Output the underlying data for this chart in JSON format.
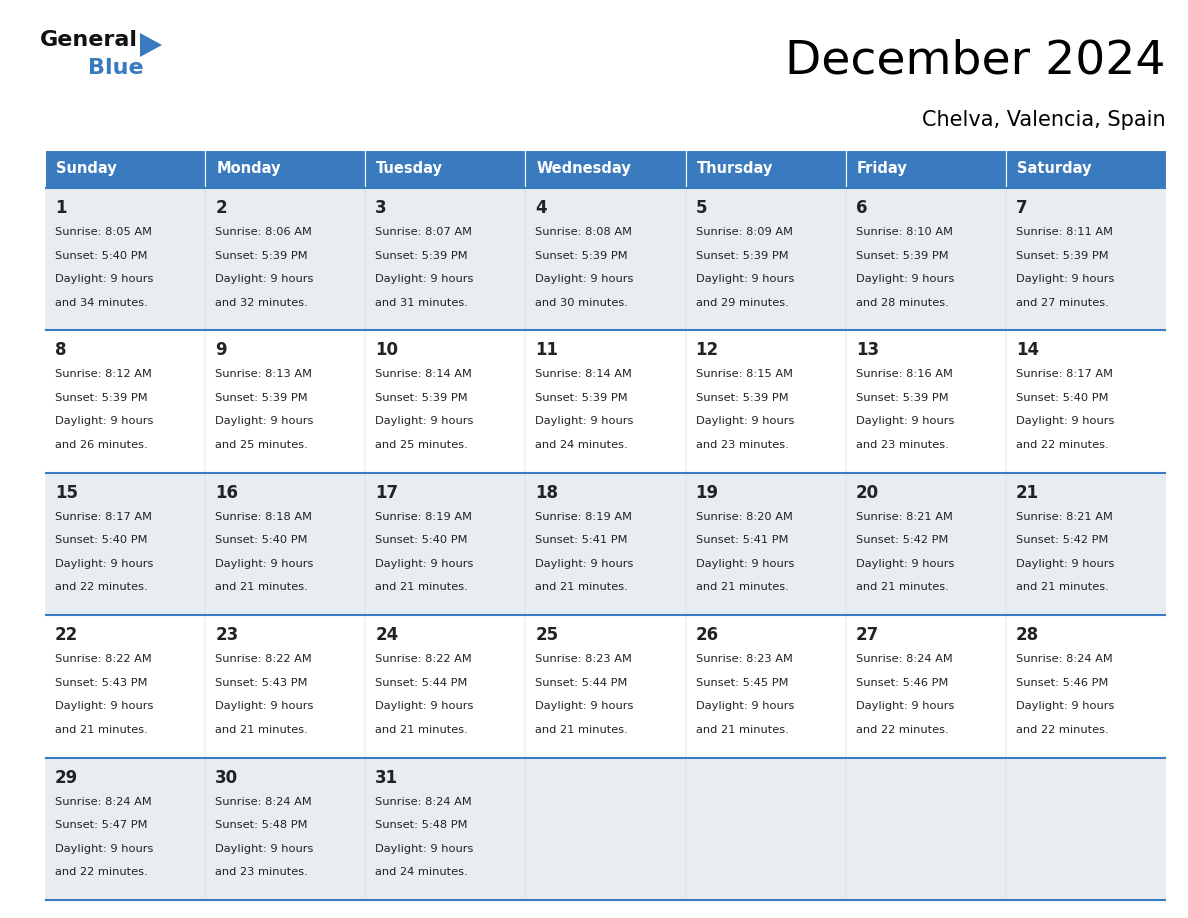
{
  "title": "December 2024",
  "subtitle": "Chelva, Valencia, Spain",
  "header_color": "#3a7abf",
  "header_text_color": "#ffffff",
  "day_names": [
    "Sunday",
    "Monday",
    "Tuesday",
    "Wednesday",
    "Thursday",
    "Friday",
    "Saturday"
  ],
  "cell_bg_odd": "#e8edf2",
  "cell_bg_even": "#ffffff",
  "border_color": "#3a7abf",
  "text_color": "#222222",
  "days": [
    {
      "day": 1,
      "col": 0,
      "row": 0,
      "sunrise": "8:05 AM",
      "sunset": "5:40 PM",
      "daylight": "9 hours and 34 minutes."
    },
    {
      "day": 2,
      "col": 1,
      "row": 0,
      "sunrise": "8:06 AM",
      "sunset": "5:39 PM",
      "daylight": "9 hours and 32 minutes."
    },
    {
      "day": 3,
      "col": 2,
      "row": 0,
      "sunrise": "8:07 AM",
      "sunset": "5:39 PM",
      "daylight": "9 hours and 31 minutes."
    },
    {
      "day": 4,
      "col": 3,
      "row": 0,
      "sunrise": "8:08 AM",
      "sunset": "5:39 PM",
      "daylight": "9 hours and 30 minutes."
    },
    {
      "day": 5,
      "col": 4,
      "row": 0,
      "sunrise": "8:09 AM",
      "sunset": "5:39 PM",
      "daylight": "9 hours and 29 minutes."
    },
    {
      "day": 6,
      "col": 5,
      "row": 0,
      "sunrise": "8:10 AM",
      "sunset": "5:39 PM",
      "daylight": "9 hours and 28 minutes."
    },
    {
      "day": 7,
      "col": 6,
      "row": 0,
      "sunrise": "8:11 AM",
      "sunset": "5:39 PM",
      "daylight": "9 hours and 27 minutes."
    },
    {
      "day": 8,
      "col": 0,
      "row": 1,
      "sunrise": "8:12 AM",
      "sunset": "5:39 PM",
      "daylight": "9 hours and 26 minutes."
    },
    {
      "day": 9,
      "col": 1,
      "row": 1,
      "sunrise": "8:13 AM",
      "sunset": "5:39 PM",
      "daylight": "9 hours and 25 minutes."
    },
    {
      "day": 10,
      "col": 2,
      "row": 1,
      "sunrise": "8:14 AM",
      "sunset": "5:39 PM",
      "daylight": "9 hours and 25 minutes."
    },
    {
      "day": 11,
      "col": 3,
      "row": 1,
      "sunrise": "8:14 AM",
      "sunset": "5:39 PM",
      "daylight": "9 hours and 24 minutes."
    },
    {
      "day": 12,
      "col": 4,
      "row": 1,
      "sunrise": "8:15 AM",
      "sunset": "5:39 PM",
      "daylight": "9 hours and 23 minutes."
    },
    {
      "day": 13,
      "col": 5,
      "row": 1,
      "sunrise": "8:16 AM",
      "sunset": "5:39 PM",
      "daylight": "9 hours and 23 minutes."
    },
    {
      "day": 14,
      "col": 6,
      "row": 1,
      "sunrise": "8:17 AM",
      "sunset": "5:40 PM",
      "daylight": "9 hours and 22 minutes."
    },
    {
      "day": 15,
      "col": 0,
      "row": 2,
      "sunrise": "8:17 AM",
      "sunset": "5:40 PM",
      "daylight": "9 hours and 22 minutes."
    },
    {
      "day": 16,
      "col": 1,
      "row": 2,
      "sunrise": "8:18 AM",
      "sunset": "5:40 PM",
      "daylight": "9 hours and 21 minutes."
    },
    {
      "day": 17,
      "col": 2,
      "row": 2,
      "sunrise": "8:19 AM",
      "sunset": "5:40 PM",
      "daylight": "9 hours and 21 minutes."
    },
    {
      "day": 18,
      "col": 3,
      "row": 2,
      "sunrise": "8:19 AM",
      "sunset": "5:41 PM",
      "daylight": "9 hours and 21 minutes."
    },
    {
      "day": 19,
      "col": 4,
      "row": 2,
      "sunrise": "8:20 AM",
      "sunset": "5:41 PM",
      "daylight": "9 hours and 21 minutes."
    },
    {
      "day": 20,
      "col": 5,
      "row": 2,
      "sunrise": "8:21 AM",
      "sunset": "5:42 PM",
      "daylight": "9 hours and 21 minutes."
    },
    {
      "day": 21,
      "col": 6,
      "row": 2,
      "sunrise": "8:21 AM",
      "sunset": "5:42 PM",
      "daylight": "9 hours and 21 minutes."
    },
    {
      "day": 22,
      "col": 0,
      "row": 3,
      "sunrise": "8:22 AM",
      "sunset": "5:43 PM",
      "daylight": "9 hours and 21 minutes."
    },
    {
      "day": 23,
      "col": 1,
      "row": 3,
      "sunrise": "8:22 AM",
      "sunset": "5:43 PM",
      "daylight": "9 hours and 21 minutes."
    },
    {
      "day": 24,
      "col": 2,
      "row": 3,
      "sunrise": "8:22 AM",
      "sunset": "5:44 PM",
      "daylight": "9 hours and 21 minutes."
    },
    {
      "day": 25,
      "col": 3,
      "row": 3,
      "sunrise": "8:23 AM",
      "sunset": "5:44 PM",
      "daylight": "9 hours and 21 minutes."
    },
    {
      "day": 26,
      "col": 4,
      "row": 3,
      "sunrise": "8:23 AM",
      "sunset": "5:45 PM",
      "daylight": "9 hours and 21 minutes."
    },
    {
      "day": 27,
      "col": 5,
      "row": 3,
      "sunrise": "8:24 AM",
      "sunset": "5:46 PM",
      "daylight": "9 hours and 22 minutes."
    },
    {
      "day": 28,
      "col": 6,
      "row": 3,
      "sunrise": "8:24 AM",
      "sunset": "5:46 PM",
      "daylight": "9 hours and 22 minutes."
    },
    {
      "day": 29,
      "col": 0,
      "row": 4,
      "sunrise": "8:24 AM",
      "sunset": "5:47 PM",
      "daylight": "9 hours and 22 minutes."
    },
    {
      "day": 30,
      "col": 1,
      "row": 4,
      "sunrise": "8:24 AM",
      "sunset": "5:48 PM",
      "daylight": "9 hours and 23 minutes."
    },
    {
      "day": 31,
      "col": 2,
      "row": 4,
      "sunrise": "8:24 AM",
      "sunset": "5:48 PM",
      "daylight": "9 hours and 24 minutes."
    }
  ],
  "logo_text1": "General",
  "logo_text2": "Blue",
  "num_rows": 5
}
